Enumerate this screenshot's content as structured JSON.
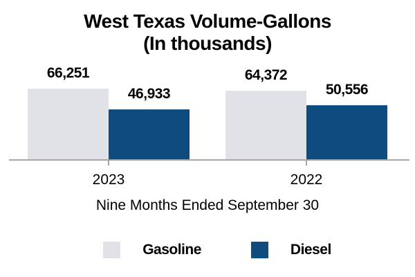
{
  "chart_data": {
    "type": "bar",
    "title": "West Texas Volume-Gallons",
    "subtitle": "(In thousands)",
    "categories": [
      "2023",
      "2022"
    ],
    "series": [
      {
        "name": "Gasoline",
        "color": "#E0E2E7",
        "values": [
          66251,
          64372
        ]
      },
      {
        "name": "Diesel",
        "color": "#0E4C80",
        "values": [
          46933,
          50556
        ]
      }
    ],
    "value_labels": [
      "66,251",
      "46,933",
      "64,372",
      "50,556"
    ],
    "xlabel": "Nine Months Ended September 30",
    "ylabel": "",
    "grid": false,
    "legend_position": "bottom",
    "axis_line_color": "#A6A6A6",
    "text_color": "#000000",
    "background_color": "#FFFFFF"
  }
}
